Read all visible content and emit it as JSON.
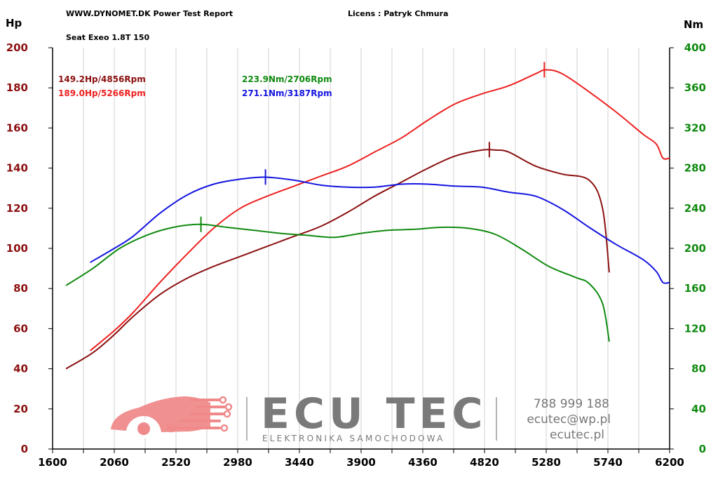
{
  "header": {
    "site": "WWW.DYNOMET.DK  Power Test Report",
    "license": "Licens :  Patryk Chmura",
    "vehicle": "Seat Exeo 1.8T 150"
  },
  "logo": {
    "name": "ECU TEC",
    "tagline": "ELEKTRONIKA SAMOCHODOWA",
    "phone": "788 999 188",
    "email": "ecutec@wp.pl",
    "website": "ecutec.pl",
    "color_red": "#ee6e6e",
    "color_gray": "#7a7a7a"
  },
  "chart_data": {
    "type": "line",
    "ylabel_left": "Hp",
    "ylabel_right": "Nm",
    "xlim": [
      1600,
      6200
    ],
    "ylim_left": [
      0,
      200
    ],
    "ylim_right": [
      0,
      400
    ],
    "xticks": [
      "1600",
      "2060",
      "2520",
      "2980",
      "3440",
      "3900",
      "4360",
      "4820",
      "5280",
      "5740",
      "6200"
    ],
    "yticks_left": [
      "0",
      "20",
      "40",
      "60",
      "80",
      "100",
      "120",
      "140",
      "160",
      "180",
      "200"
    ],
    "yticks_right": [
      "0",
      "40",
      "80",
      "120",
      "160",
      "200",
      "240",
      "280",
      "320",
      "360",
      "400"
    ],
    "grid": "vertical",
    "annotations": [
      {
        "text": "149.2Hp/4856Rpm",
        "color": "#8b1010"
      },
      {
        "text": "189.0Hp/5266Rpm",
        "color": "#ee2020"
      },
      {
        "text": "223.9Nm/2706Rpm",
        "color": "#108a10"
      },
      {
        "text": "271.1Nm/3187Rpm",
        "color": "#1515e0"
      }
    ],
    "series": [
      {
        "color": "#8b1010",
        "axis": "left",
        "x": [
          1700,
          1900,
          2060,
          2200,
          2400,
          2600,
          2800,
          3000,
          3200,
          3400,
          3600,
          3800,
          4000,
          4200,
          4400,
          4600,
          4800,
          4900,
          5000,
          5200,
          5400,
          5600,
          5700,
          5750
        ],
        "y": [
          40,
          48,
          57,
          66,
          77,
          85,
          91,
          96,
          101,
          106,
          111,
          118,
          126,
          133,
          140,
          146,
          149,
          149,
          148,
          141,
          137,
          134,
          120,
          88
        ]
      },
      {
        "color": "#ee2020",
        "axis": "left",
        "x": [
          1880,
          2060,
          2200,
          2400,
          2600,
          2800,
          3000,
          3200,
          3400,
          3600,
          3800,
          4000,
          4200,
          4400,
          4600,
          4800,
          5000,
          5200,
          5280,
          5400,
          5600,
          5800,
          6000,
          6100,
          6150,
          6200
        ],
        "y": [
          49,
          59,
          68,
          83,
          97,
          110,
          120,
          126,
          131,
          136,
          141,
          148,
          155,
          164,
          172,
          177,
          181,
          187,
          189,
          187,
          178,
          168,
          157,
          152,
          145,
          145
        ]
      },
      {
        "color": "#108a10",
        "axis": "right",
        "x": [
          1700,
          1900,
          2100,
          2300,
          2500,
          2700,
          2900,
          3100,
          3300,
          3500,
          3700,
          3900,
          4100,
          4300,
          4500,
          4700,
          4900,
          5100,
          5300,
          5500,
          5600,
          5700,
          5750
        ],
        "y": [
          163,
          180,
          200,
          213,
          221,
          224,
          221,
          218,
          215,
          213,
          211,
          215,
          218,
          219,
          221,
          220,
          214,
          199,
          182,
          171,
          165,
          145,
          107
        ]
      },
      {
        "color": "#1515e0",
        "axis": "right",
        "x": [
          1880,
          2060,
          2200,
          2400,
          2600,
          2800,
          3000,
          3187,
          3400,
          3600,
          3800,
          4000,
          4200,
          4400,
          4600,
          4800,
          5000,
          5200,
          5400,
          5600,
          5800,
          6000,
          6100,
          6150,
          6200
        ],
        "y": [
          186,
          200,
          212,
          235,
          253,
          264,
          269,
          271,
          268,
          263,
          261,
          261,
          264,
          264,
          262,
          261,
          256,
          252,
          239,
          221,
          204,
          189,
          177,
          166,
          166
        ]
      }
    ],
    "peaks": [
      {
        "series": 0,
        "x": 4856,
        "y": 149.2
      },
      {
        "series": 1,
        "x": 5266,
        "y": 189.0
      },
      {
        "series": 2,
        "x": 2706,
        "y": 223.9
      },
      {
        "series": 3,
        "x": 3187,
        "y": 271.1
      }
    ]
  }
}
